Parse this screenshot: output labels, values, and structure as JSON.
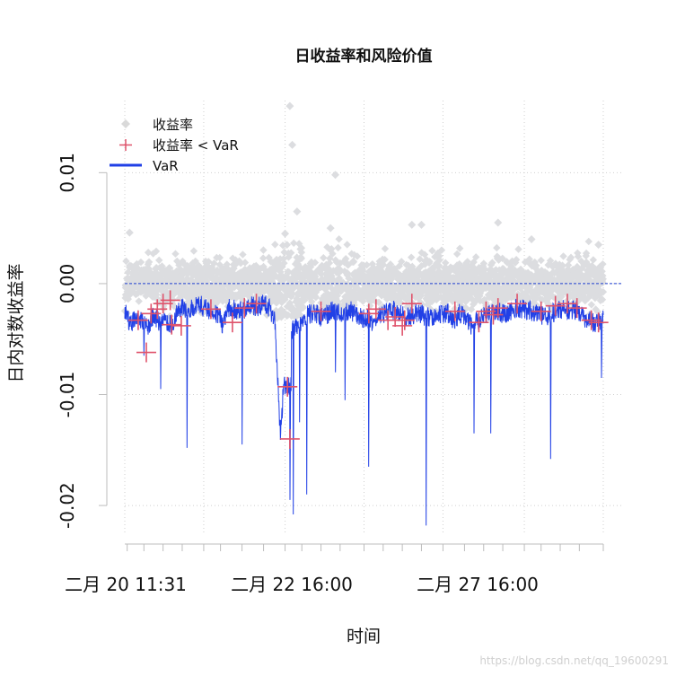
{
  "chart_data": {
    "type": "line",
    "title": "日收益率和风险价值",
    "xlabel": "时间",
    "ylabel": "日内对数收益率",
    "ylim": [
      -0.0225,
      0.0165
    ],
    "y_ticks": [
      {
        "value": 0.01,
        "label": "0.01"
      },
      {
        "value": 0.0,
        "label": "0.00"
      },
      {
        "value": -0.01,
        "label": "-0.01"
      },
      {
        "value": -0.02,
        "label": "-0.02"
      }
    ],
    "x_tick_labels": [
      "二月 20 11:31",
      "二月 22 16:00",
      "二月 27 16:00"
    ],
    "grid": true,
    "legend_placement": "top-left",
    "legend": [
      {
        "label": "收益率",
        "symbol": "diamond",
        "color": "#d9d9d9"
      },
      {
        "label": "收益率 < VaR",
        "symbol": "cross",
        "color": "#df536b"
      },
      {
        "label": "VaR",
        "symbol": "line",
        "color": "#2040e0"
      }
    ],
    "colors": {
      "returns": "#dcdde0",
      "breach": "#df536b",
      "var": "#2140e6",
      "zero_line": "#1f3fd0"
    },
    "series": [
      {
        "name": "VaR",
        "values_approx": [
          -0.0022,
          -0.0035,
          -0.0028,
          -0.003,
          -0.0038,
          -0.0025,
          -0.0033,
          -0.003,
          -0.0035,
          -0.0026,
          -0.002,
          -0.0021,
          -0.0018,
          -0.0017,
          -0.002,
          -0.0022,
          -0.0025,
          -0.0035,
          -0.002,
          -0.0021,
          -0.0022,
          -0.0021,
          -0.0018,
          -0.002,
          -0.0015,
          -0.002,
          -0.003,
          -0.0135,
          -0.006,
          -0.004,
          -0.0035,
          -0.003,
          -0.0025,
          -0.0025,
          -0.0028,
          -0.0026,
          -0.0022,
          -0.0023,
          -0.0025,
          -0.0022,
          -0.0025,
          -0.0028,
          -0.003,
          -0.0032,
          -0.0024,
          -0.0025,
          -0.0022,
          -0.0022,
          -0.0025,
          -0.0028,
          -0.0026,
          -0.0024,
          -0.0027,
          -0.0028,
          -0.0025,
          -0.0026,
          -0.0024,
          -0.0032,
          -0.0025,
          -0.0027,
          -0.0035,
          -0.0032,
          -0.0028,
          -0.0026,
          -0.0025,
          -0.0024,
          -0.0025,
          -0.0022,
          -0.002,
          -0.0021,
          -0.0022,
          -0.0024,
          -0.0026,
          -0.0028,
          -0.0025,
          -0.0023,
          -0.002,
          -0.0021,
          -0.0022,
          -0.0024,
          -0.003,
          -0.0032,
          -0.0034,
          -0.003
        ]
      },
      {
        "name": "收益率 < VaR",
        "points_approx": [
          {
            "x": 0.028,
            "y": -0.0033
          },
          {
            "x": 0.045,
            "y": -0.0062
          },
          {
            "x": 0.055,
            "y": -0.0027
          },
          {
            "x": 0.068,
            "y": -0.0023
          },
          {
            "x": 0.08,
            "y": -0.0018
          },
          {
            "x": 0.095,
            "y": -0.0015
          },
          {
            "x": 0.098,
            "y": -0.0037
          },
          {
            "x": 0.118,
            "y": -0.0038
          },
          {
            "x": 0.18,
            "y": -0.0023
          },
          {
            "x": 0.225,
            "y": -0.0035
          },
          {
            "x": 0.25,
            "y": -0.0022
          },
          {
            "x": 0.275,
            "y": -0.0018
          },
          {
            "x": 0.34,
            "y": -0.0093
          },
          {
            "x": 0.345,
            "y": -0.014
          },
          {
            "x": 0.41,
            "y": -0.0025
          },
          {
            "x": 0.51,
            "y": -0.0027
          },
          {
            "x": 0.525,
            "y": -0.0023
          },
          {
            "x": 0.55,
            "y": -0.0033
          },
          {
            "x": 0.565,
            "y": -0.003
          },
          {
            "x": 0.58,
            "y": -0.0038
          },
          {
            "x": 0.585,
            "y": -0.0033
          },
          {
            "x": 0.6,
            "y": -0.0018
          },
          {
            "x": 0.69,
            "y": -0.0025
          },
          {
            "x": 0.74,
            "y": -0.0035
          },
          {
            "x": 0.755,
            "y": -0.0025
          },
          {
            "x": 0.77,
            "y": -0.0028
          },
          {
            "x": 0.78,
            "y": -0.0022
          },
          {
            "x": 0.82,
            "y": -0.0018
          },
          {
            "x": 0.87,
            "y": -0.0025
          },
          {
            "x": 0.9,
            "y": -0.002
          },
          {
            "x": 0.925,
            "y": -0.0018
          },
          {
            "x": 0.945,
            "y": -0.0022
          },
          {
            "x": 0.975,
            "y": -0.0033
          },
          {
            "x": 0.99,
            "y": -0.0035
          }
        ]
      }
    ],
    "var_spikes_approx": [
      {
        "x": 0.04,
        "y": -0.0065
      },
      {
        "x": 0.075,
        "y": -0.0095
      },
      {
        "x": 0.13,
        "y": -0.0148
      },
      {
        "x": 0.245,
        "y": -0.0145
      },
      {
        "x": 0.33,
        "y": -0.0095
      },
      {
        "x": 0.345,
        "y": -0.0195
      },
      {
        "x": 0.352,
        "y": -0.0208
      },
      {
        "x": 0.365,
        "y": -0.0125
      },
      {
        "x": 0.38,
        "y": -0.019
      },
      {
        "x": 0.44,
        "y": -0.008
      },
      {
        "x": 0.46,
        "y": -0.0105
      },
      {
        "x": 0.51,
        "y": -0.0165
      },
      {
        "x": 0.63,
        "y": -0.0218
      },
      {
        "x": 0.73,
        "y": -0.0135
      },
      {
        "x": 0.765,
        "y": -0.0135
      },
      {
        "x": 0.89,
        "y": -0.0158
      },
      {
        "x": 0.996,
        "y": -0.0085
      }
    ],
    "return_outliers_approx": [
      {
        "x": 0.01,
        "y": 0.0046
      },
      {
        "x": 0.335,
        "y": 0.0045
      },
      {
        "x": 0.345,
        "y": 0.016
      },
      {
        "x": 0.35,
        "y": 0.0125
      },
      {
        "x": 0.36,
        "y": 0.0065
      },
      {
        "x": 0.44,
        "y": 0.0098
      },
      {
        "x": 0.43,
        "y": 0.005
      },
      {
        "x": 0.6,
        "y": 0.0053
      },
      {
        "x": 0.62,
        "y": 0.0053
      },
      {
        "x": 0.78,
        "y": 0.0055
      },
      {
        "x": 0.85,
        "y": 0.004
      },
      {
        "x": 0.99,
        "y": 0.0035
      }
    ]
  },
  "watermark": "https://blog.csdn.net/qq_19600291"
}
